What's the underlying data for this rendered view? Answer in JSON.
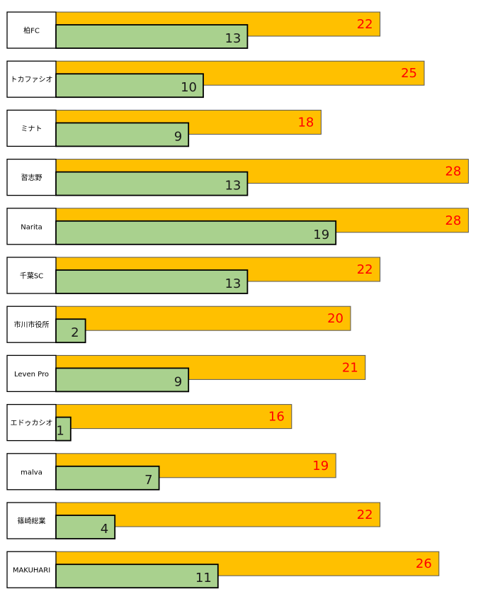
{
  "chart_data": {
    "type": "bar",
    "orientation": "horizontal",
    "categories": [
      "柏FC",
      "トカファシオ",
      "ミナト",
      "習志野",
      "Narita",
      "千葉SC",
      "市川市役所",
      "Leven Pro",
      "エドゥカシオ",
      "malva",
      "篠崎総業",
      "MAKUHARI"
    ],
    "series": [
      {
        "values": [
          22,
          25,
          18,
          28,
          28,
          22,
          20,
          21,
          16,
          19,
          22,
          26
        ],
        "color": "#FFC000",
        "label_color": "#FF0000"
      },
      {
        "values": [
          13,
          10,
          9,
          13,
          19,
          13,
          2,
          9,
          1,
          7,
          4,
          11
        ],
        "color": "#A9D18E",
        "label_color": "#1a1a1a"
      }
    ],
    "xlim": [
      0,
      28
    ],
    "grid": false,
    "legend": "none",
    "title": "",
    "xlabel": "",
    "ylabel": ""
  }
}
